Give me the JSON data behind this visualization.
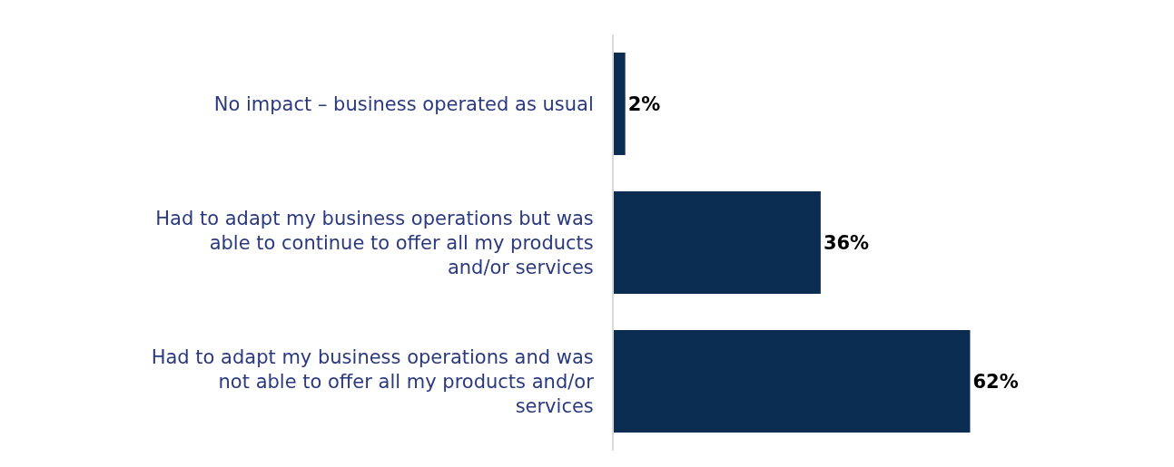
{
  "chart_data": {
    "type": "bar",
    "orientation": "horizontal",
    "categories": [
      "No impact – business operated as usual",
      "Had to adapt my business operations but was able to continue to offer all my products and/or services",
      "Had to adapt my business operations and was not able to offer all my products and/or services"
    ],
    "values": [
      2,
      36,
      62
    ],
    "value_labels": [
      "2%",
      "36%",
      "62%"
    ],
    "color": "#0b2d52",
    "xlim": [
      0,
      97
    ],
    "tick_labels": "y",
    "legend": false
  }
}
